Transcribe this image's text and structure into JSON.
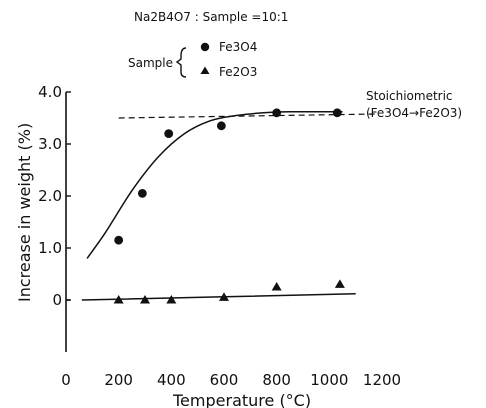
{
  "chart_data": {
    "type": "scatter",
    "title": "",
    "ratio_label": "Na2B4O7 : Sample =10:1",
    "legend": {
      "heading": "Sample",
      "entries": [
        {
          "name": "Fe3O4",
          "marker": "circle"
        },
        {
          "name": "Fe2O3",
          "marker": "triangle"
        }
      ]
    },
    "xlabel": "Temperature (°C)",
    "ylabel": "Increase in weight (%)",
    "xlim": [
      0,
      1200
    ],
    "ylim": [
      -1.5,
      4.0
    ],
    "x_ticks": [
      0,
      200,
      400,
      600,
      800,
      1000,
      1200
    ],
    "x_tick_labels": [
      "0",
      "200",
      "400",
      "600",
      "800",
      "1000",
      "1200"
    ],
    "y_ticks": [
      0,
      1.0,
      2.0,
      3.0,
      4.0
    ],
    "y_tick_labels": [
      "0",
      "1.0",
      "2.0",
      "3.0",
      "4.0"
    ],
    "series": [
      {
        "name": "Fe3O4",
        "marker": "circle",
        "x": [
          200,
          290,
          390,
          590,
          800,
          1030
        ],
        "y": [
          1.15,
          2.05,
          3.2,
          3.35,
          3.6,
          3.6
        ]
      },
      {
        "name": "Fe2O3",
        "marker": "triangle",
        "x": [
          200,
          300,
          400,
          600,
          800,
          1040
        ],
        "y": [
          0.0,
          0.0,
          0.0,
          0.05,
          0.25,
          0.3
        ]
      }
    ],
    "fit_curves": [
      {
        "series": "Fe3O4",
        "x": [
          80,
          150,
          250,
          350,
          450,
          550,
          650,
          750,
          850,
          950,
          1050
        ],
        "y": [
          0.8,
          1.3,
          2.1,
          2.75,
          3.2,
          3.45,
          3.55,
          3.6,
          3.62,
          3.62,
          3.62
        ]
      },
      {
        "series": "Fe2O3",
        "x": [
          60,
          1100
        ],
        "y": [
          0.0,
          0.12
        ]
      }
    ],
    "reference_line": {
      "y": 3.5,
      "x": [
        200,
        1180
      ],
      "label": "Stoichiometric",
      "label2": "(Fe3O4→Fe2O3)"
    },
    "grid": false,
    "legend_position": "top-center"
  }
}
